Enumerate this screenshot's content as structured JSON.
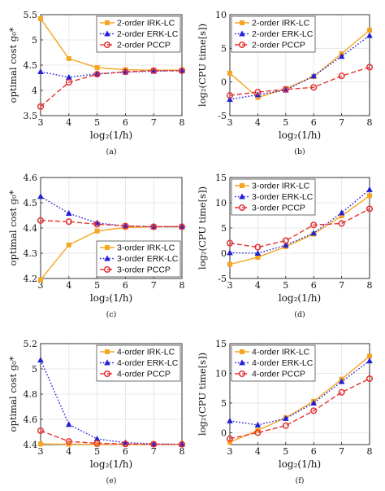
{
  "chart_data": [
    {
      "id": "a",
      "type": "line",
      "caption": "(a)",
      "ylabel_text": "optimal cost",
      "ylabel_math": "g₀*",
      "xlabel": "log₂(1/h)",
      "x": [
        3,
        4,
        5,
        6,
        7,
        8
      ],
      "xlim": [
        3,
        8
      ],
      "ylim": [
        3.5,
        5.5
      ],
      "xticks": [
        3,
        4,
        5,
        6,
        7,
        8
      ],
      "yticks": [
        3.5,
        4,
        4.5,
        5,
        5.5
      ],
      "ytick_labels": [
        "3.5",
        "4",
        "4.5",
        "5",
        "5.5"
      ],
      "grid": true,
      "legend": "top-right",
      "series": [
        {
          "name": "2-order IRK-LC",
          "color": "#f5a623",
          "marker": "square",
          "dash": "solid",
          "values": [
            5.42,
            4.63,
            4.45,
            4.41,
            4.4,
            4.4
          ]
        },
        {
          "name": "2-order ERK-LC",
          "color": "#1f1fd6",
          "marker": "triangle",
          "dash": "dotted",
          "values": [
            4.37,
            4.26,
            4.33,
            4.36,
            4.38,
            4.39
          ]
        },
        {
          "name": "2-order PCCP",
          "color": "#e63232",
          "marker": "circle",
          "dash": "dashed",
          "values": [
            3.68,
            4.16,
            4.32,
            4.37,
            4.39,
            4.39
          ]
        }
      ]
    },
    {
      "id": "b",
      "type": "line",
      "caption": "(b)",
      "ylabel_text": "log₂(CPU time[s])",
      "ylabel_math": "",
      "xlabel": "log₂(1/h)",
      "x": [
        3,
        4,
        5,
        6,
        7,
        8
      ],
      "xlim": [
        3,
        8
      ],
      "ylim": [
        -5,
        10
      ],
      "xticks": [
        3,
        4,
        5,
        6,
        7,
        8
      ],
      "yticks": [
        -5,
        0,
        5,
        10
      ],
      "ytick_labels": [
        "-5",
        "0",
        "5",
        "10"
      ],
      "grid": true,
      "legend": "top-left",
      "series": [
        {
          "name": "2-order IRK-LC",
          "color": "#f5a623",
          "marker": "square",
          "dash": "solid",
          "values": [
            1.3,
            -2.3,
            -1.0,
            0.8,
            4.2,
            7.7
          ]
        },
        {
          "name": "2-order ERK-LC",
          "color": "#1f1fd6",
          "marker": "triangle",
          "dash": "dotted",
          "values": [
            -2.6,
            -1.9,
            -1.2,
            0.9,
            3.8,
            6.9
          ]
        },
        {
          "name": "2-order PCCP",
          "color": "#e63232",
          "marker": "circle",
          "dash": "dashed",
          "values": [
            -2.0,
            -1.5,
            -1.1,
            -0.8,
            0.9,
            2.2
          ]
        }
      ]
    },
    {
      "id": "c",
      "type": "line",
      "caption": "(c)",
      "ylabel_text": "optimal cost",
      "ylabel_math": "g₀*",
      "xlabel": "log₂(1/h)",
      "x": [
        3,
        4,
        5,
        6,
        7,
        8
      ],
      "xlim": [
        3,
        8
      ],
      "ylim": [
        4.2,
        4.6
      ],
      "xticks": [
        3,
        4,
        5,
        6,
        7,
        8
      ],
      "yticks": [
        4.2,
        4.3,
        4.4,
        4.5,
        4.6
      ],
      "ytick_labels": [
        "4.2",
        "4.3",
        "4.4",
        "4.5",
        "4.6"
      ],
      "grid": true,
      "legend": "bottom-right",
      "series": [
        {
          "name": "3-order IRK-LC",
          "color": "#f5a623",
          "marker": "square",
          "dash": "solid",
          "values": [
            4.195,
            4.333,
            4.388,
            4.402,
            4.405,
            4.405
          ]
        },
        {
          "name": "3-order ERK-LC",
          "color": "#1f1fd6",
          "marker": "triangle",
          "dash": "dotted",
          "values": [
            4.525,
            4.458,
            4.42,
            4.408,
            4.405,
            4.405
          ]
        },
        {
          "name": "3-order PCCP",
          "color": "#e63232",
          "marker": "circle",
          "dash": "dashed",
          "values": [
            4.43,
            4.425,
            4.415,
            4.408,
            4.405,
            4.405
          ]
        }
      ]
    },
    {
      "id": "d",
      "type": "line",
      "caption": "(d)",
      "ylabel_text": "log₂(CPU time[s])",
      "ylabel_math": "",
      "xlabel": "log₂(1/h)",
      "x": [
        3,
        4,
        5,
        6,
        7,
        8
      ],
      "xlim": [
        3,
        8
      ],
      "ylim": [
        -5,
        15
      ],
      "xticks": [
        3,
        4,
        5,
        6,
        7,
        8
      ],
      "yticks": [
        -5,
        0,
        5,
        10,
        15
      ],
      "ytick_labels": [
        "-5",
        "0",
        "5",
        "10",
        "15"
      ],
      "grid": true,
      "legend": "top-left",
      "series": [
        {
          "name": "3-order IRK-LC",
          "color": "#f5a623",
          "marker": "square",
          "dash": "solid",
          "values": [
            -2.2,
            -0.8,
            1.3,
            3.8,
            7.4,
            11.4
          ]
        },
        {
          "name": "3-order ERK-LC",
          "color": "#1f1fd6",
          "marker": "triangle",
          "dash": "dotted",
          "values": [
            0.1,
            0.0,
            1.6,
            4.0,
            8.0,
            12.6
          ]
        },
        {
          "name": "3-order PCCP",
          "color": "#e63232",
          "marker": "circle",
          "dash": "dashed",
          "values": [
            2.0,
            1.2,
            2.5,
            5.6,
            5.9,
            8.8
          ]
        }
      ]
    },
    {
      "id": "e",
      "type": "line",
      "caption": "(e)",
      "ylabel_text": "optimal cost",
      "ylabel_math": "g₀*",
      "xlabel": "log₂(1/h)",
      "x": [
        3,
        4,
        5,
        6,
        7,
        8
      ],
      "xlim": [
        3,
        8
      ],
      "ylim": [
        4.4,
        5.2
      ],
      "xticks": [
        3,
        4,
        5,
        6,
        7,
        8
      ],
      "yticks": [
        4.4,
        4.6,
        4.8,
        5.0,
        5.2
      ],
      "ytick_labels": [
        "4.4",
        "4.6",
        "4.8",
        "5",
        "5.2"
      ],
      "grid": true,
      "legend": "top-right",
      "series": [
        {
          "name": "4-order IRK-LC",
          "color": "#f5a623",
          "marker": "square",
          "dash": "solid",
          "values": [
            4.405,
            4.403,
            4.402,
            4.402,
            4.402,
            4.402
          ]
        },
        {
          "name": "4-order ERK-LC",
          "color": "#1f1fd6",
          "marker": "triangle",
          "dash": "dotted",
          "values": [
            5.07,
            4.56,
            4.445,
            4.415,
            4.405,
            4.402
          ]
        },
        {
          "name": "4-order PCCP",
          "color": "#e63232",
          "marker": "circle",
          "dash": "dashed",
          "values": [
            4.51,
            4.425,
            4.41,
            4.405,
            4.403,
            4.402
          ]
        }
      ]
    },
    {
      "id": "f",
      "type": "line",
      "caption": "(f)",
      "ylabel_text": "log₂(CPU time[s])",
      "ylabel_math": "",
      "xlabel": "log₂(1/h)",
      "x": [
        3,
        4,
        5,
        6,
        7,
        8
      ],
      "xlim": [
        3,
        8
      ],
      "ylim": [
        -2,
        15
      ],
      "xticks": [
        3,
        4,
        5,
        6,
        7,
        8
      ],
      "yticks": [
        0,
        5,
        10,
        15
      ],
      "ytick_labels": [
        "0",
        "5",
        "10",
        "15"
      ],
      "grid": true,
      "legend": "top-left",
      "series": [
        {
          "name": "4-order IRK-LC",
          "color": "#f5a623",
          "marker": "square",
          "dash": "solid",
          "values": [
            -1.6,
            0.4,
            2.5,
            5.3,
            9.0,
            12.9
          ]
        },
        {
          "name": "4-order ERK-LC",
          "color": "#1f1fd6",
          "marker": "triangle",
          "dash": "dotted",
          "values": [
            2.0,
            1.3,
            2.4,
            5.0,
            8.6,
            12.1
          ]
        },
        {
          "name": "4-order PCCP",
          "color": "#e63232",
          "marker": "circle",
          "dash": "dashed",
          "values": [
            -1.0,
            0.0,
            1.2,
            3.7,
            6.8,
            9.1
          ]
        }
      ]
    }
  ]
}
